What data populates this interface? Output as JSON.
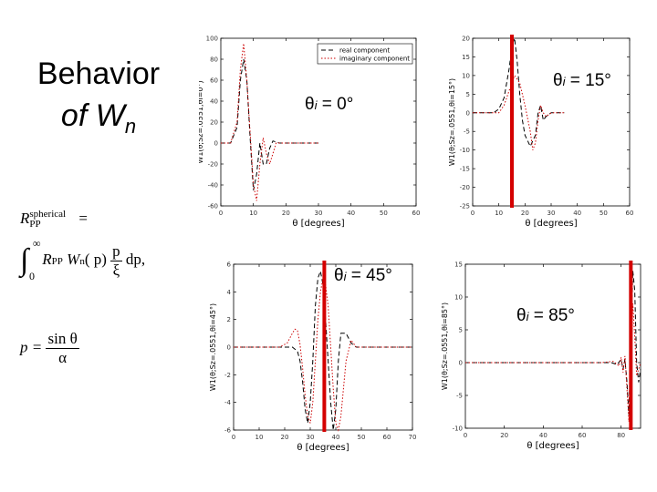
{
  "slide": {
    "title_line1": "Behavior",
    "title_line2": "of W",
    "title_sub": "n"
  },
  "formulas": {
    "f1_lhs": "R",
    "f1_sup": "spherical",
    "f1_sub": "PP",
    "f1_eq": "=",
    "f2_int": "∫",
    "f2_upper": "∞",
    "f2_lower": "0",
    "f2_body_a": "R",
    "f2_body_sub": "PP",
    "f2_body_b": "W",
    "f2_body_sub2": "n",
    "f2_body_c": "( p)",
    "f2_frac_num": "p",
    "f2_frac_den": "ξ",
    "f2_tail": "dp,",
    "f3_lhs": "p =",
    "f3_num": "sin θ",
    "f3_den": "α"
  },
  "chart_data": [
    {
      "type": "line",
      "panel": "top-left",
      "angle_label": "θ",
      "angle_sub": "i",
      "angle_value": " = 0°",
      "xlabel": "θ [degrees]",
      "ylabel": "W1(θ;Sz=.0551,θi=0°)",
      "xlim": [
        0,
        60
      ],
      "ylim": [
        -60,
        100
      ],
      "xticks": [
        "0",
        "10",
        "20",
        "30",
        "40",
        "50",
        "60"
      ],
      "yticks": [
        "-60",
        "-40",
        "-20",
        "0",
        "20",
        "40",
        "60",
        "80",
        "100"
      ],
      "marker_x": null,
      "legend": [
        "real component",
        "imaginary component"
      ],
      "legend_position": "top-right",
      "series": [
        {
          "name": "real component",
          "style": "dashed",
          "color": "#000000",
          "x": [
            0,
            3,
            5,
            6,
            7,
            8,
            9,
            10,
            11,
            12,
            13,
            14,
            15,
            16,
            17,
            18,
            19,
            20,
            22,
            25,
            30
          ],
          "y": [
            0,
            0,
            15,
            60,
            80,
            60,
            5,
            -45,
            -30,
            0,
            -20,
            -20,
            -5,
            2,
            1,
            0,
            0,
            0,
            0,
            0,
            0
          ]
        },
        {
          "name": "imaginary component",
          "style": "dotted",
          "color": "#cc0000",
          "x": [
            0,
            3,
            5,
            6,
            7,
            8,
            9,
            10,
            11,
            12,
            13,
            14,
            15,
            16,
            17,
            18,
            20,
            25,
            30
          ],
          "y": [
            0,
            0,
            20,
            70,
            95,
            60,
            10,
            -40,
            -55,
            -20,
            5,
            -10,
            -20,
            -10,
            0,
            0,
            0,
            0,
            0
          ]
        }
      ]
    },
    {
      "type": "line",
      "panel": "top-right",
      "angle_label": "θ",
      "angle_sub": "i",
      "angle_value": " = 15°",
      "xlabel": "θ [degrees]",
      "ylabel": "W1(θ;Sz=.0551,θi=15°)",
      "xlim": [
        0,
        60
      ],
      "ylim": [
        -25,
        20
      ],
      "xticks": [
        "0",
        "10",
        "20",
        "30",
        "40",
        "50",
        "60"
      ],
      "yticks": [
        "-25",
        "-20",
        "-15",
        "-10",
        "-5",
        "0",
        "5",
        "10",
        "15",
        "20"
      ],
      "marker_x": 15,
      "series": [
        {
          "name": "real",
          "style": "dashed",
          "color": "#000000",
          "x": [
            0,
            5,
            8,
            10,
            12,
            14,
            15,
            16,
            17,
            18,
            19,
            20,
            22,
            24,
            25,
            26,
            27,
            28,
            30,
            35
          ],
          "y": [
            0,
            0,
            0,
            1,
            4,
            12,
            18,
            20,
            14,
            5,
            -2,
            -6,
            -9,
            -6,
            0,
            2,
            -2,
            -1,
            0,
            0
          ]
        },
        {
          "name": "imaginary",
          "style": "dotted",
          "color": "#cc0000",
          "x": [
            0,
            5,
            8,
            10,
            12,
            14,
            16,
            18,
            20,
            22,
            23,
            24,
            25,
            26,
            27,
            28,
            30,
            35
          ],
          "y": [
            0,
            0,
            0,
            0,
            2,
            6,
            10,
            8,
            2,
            -5,
            -10,
            -8,
            -2,
            2,
            0,
            -1,
            0,
            0
          ]
        }
      ]
    },
    {
      "type": "line",
      "panel": "bottom-left",
      "angle_label": "θ",
      "angle_sub": "i",
      "angle_value": " = 45°",
      "xlabel": "θ [degrees]",
      "ylabel": "W1(θ;Sz=.0551,θi=45°)",
      "xlim": [
        0,
        70
      ],
      "ylim": [
        -6,
        6
      ],
      "xticks": [
        "0",
        "10",
        "20",
        "30",
        "40",
        "50",
        "60",
        "70"
      ],
      "yticks": [
        "-6",
        "-4",
        "-2",
        "0",
        "2",
        "4",
        "6"
      ],
      "marker_x": 35.5,
      "series": [
        {
          "name": "real",
          "style": "dashed",
          "color": "#000000",
          "x": [
            0,
            20,
            23,
            25,
            26,
            27,
            28,
            29,
            30,
            31,
            32,
            33,
            34,
            35,
            36,
            37,
            38,
            39,
            40,
            41,
            42,
            44,
            46,
            48,
            50,
            70
          ],
          "y": [
            0,
            0,
            0,
            -0.3,
            -1,
            -2.5,
            -4.5,
            -5.5,
            -4,
            -1,
            3,
            5,
            5.5,
            4.5,
            2,
            -1,
            -4,
            -6,
            -4.5,
            -1,
            1,
            1,
            0.3,
            0,
            0,
            0
          ]
        },
        {
          "name": "imaginary",
          "style": "dotted",
          "color": "#cc0000",
          "x": [
            0,
            18,
            21,
            23,
            24,
            25,
            26,
            27,
            28,
            29,
            30,
            31,
            32,
            33,
            34,
            35,
            36,
            37,
            38,
            39,
            40,
            41,
            42,
            43,
            44,
            46,
            48,
            50,
            70
          ],
          "y": [
            0,
            0,
            0.3,
            1,
            1.3,
            1.2,
            0.2,
            -1.5,
            -3.5,
            -5,
            -5.5,
            -4,
            -1,
            2,
            4,
            5,
            4.5,
            3,
            0,
            -3,
            -5.5,
            -6,
            -5,
            -3,
            -1,
            0.5,
            0,
            0,
            0
          ]
        }
      ]
    },
    {
      "type": "line",
      "panel": "bottom-right",
      "angle_label": "θ",
      "angle_sub": "i",
      "angle_value": " = 85°",
      "xlabel": "θ [degrees]",
      "ylabel": "W1(θ;Sz=.0551,θi=85°)",
      "xlim": [
        0,
        90
      ],
      "ylim": [
        -10,
        15
      ],
      "xticks": [
        "0",
        "20",
        "40",
        "60",
        "80"
      ],
      "yticks": [
        "-10",
        "-5",
        "0",
        "5",
        "10",
        "15"
      ],
      "marker_x": 85,
      "series": [
        {
          "name": "real",
          "style": "dashed",
          "color": "#000000",
          "x": [
            0,
            70,
            75,
            78,
            80,
            81,
            82,
            83,
            84,
            85,
            86,
            87,
            88,
            89,
            90
          ],
          "y": [
            0,
            0,
            0,
            -0.3,
            0.5,
            -1,
            0.5,
            -3,
            -8,
            4,
            14,
            11,
            0,
            -3,
            -1
          ]
        },
        {
          "name": "imaginary",
          "style": "dotted",
          "color": "#cc0000",
          "x": [
            0,
            70,
            76,
            79,
            80,
            81,
            82,
            83,
            84,
            85,
            86,
            87,
            88,
            89,
            90
          ],
          "y": [
            0,
            0,
            0.2,
            -0.5,
            0.8,
            -1.5,
            1,
            -4,
            -9,
            -2,
            9,
            4,
            -2,
            -1,
            0
          ]
        }
      ]
    }
  ]
}
